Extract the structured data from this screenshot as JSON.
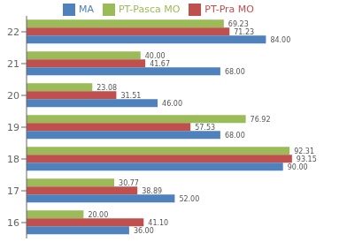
{
  "chart_data": {
    "type": "bar",
    "orientation": "horizontal",
    "categories": [
      "16",
      "17",
      "18",
      "19",
      "20",
      "21",
      "22"
    ],
    "series": [
      {
        "name": "PT-Pasca MO",
        "color": "#9BBB59",
        "values": [
          20.0,
          30.77,
          92.31,
          76.92,
          23.08,
          40.0,
          69.23
        ],
        "value_labels": [
          "20.00",
          "30.77",
          "92.31",
          "76.92",
          "23.08",
          "40.00",
          "69.23"
        ]
      },
      {
        "name": "PT-Pra MO",
        "color": "#C0504D",
        "values": [
          41.1,
          38.89,
          93.15,
          57.53,
          31.51,
          41.67,
          71.23
        ],
        "value_labels": [
          "41.10",
          "38.89",
          "93.15",
          "57.53",
          "31.51",
          "41.67",
          "71.23"
        ]
      },
      {
        "name": "MA",
        "color": "#4F81BD",
        "values": [
          36.0,
          52.0,
          90.0,
          68.0,
          46.0,
          68.0,
          84.0
        ],
        "value_labels": [
          "36.00",
          "52.00",
          "90.00",
          "68.00",
          "46.00",
          "68.00",
          "84.00"
        ]
      }
    ],
    "xlim": [
      0,
      105
    ],
    "data_labels": true,
    "legend": "top",
    "grid": false,
    "tick_labels": "y"
  }
}
